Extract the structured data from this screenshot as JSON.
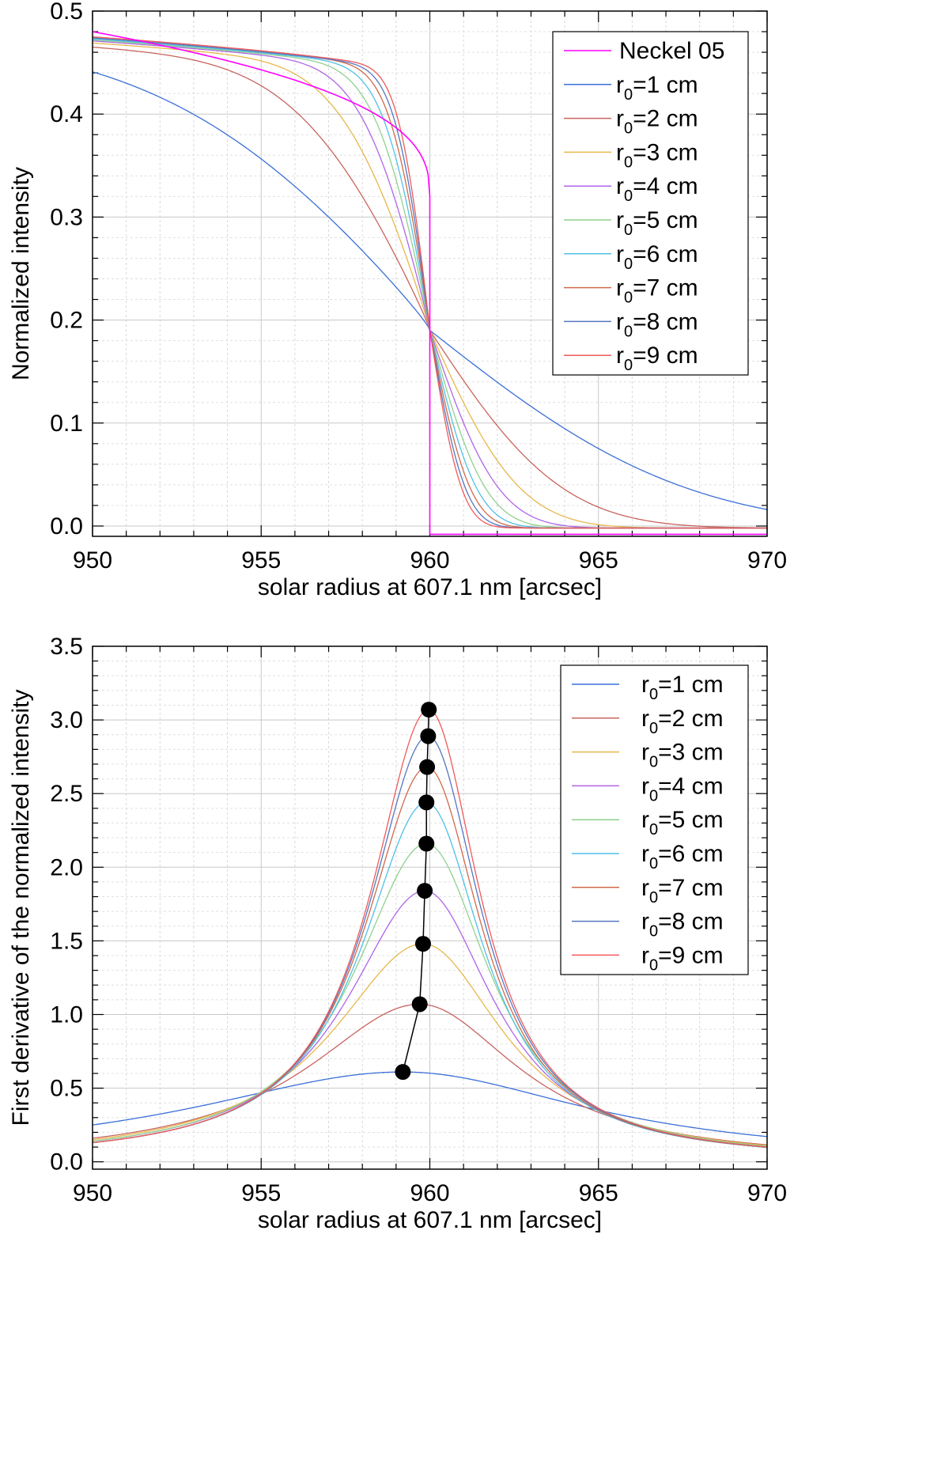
{
  "chart_data": [
    {
      "type": "line",
      "panel": "top",
      "xlabel": "solar radius at 607.1 nm [arcsec]",
      "ylabel": "Normalized intensity",
      "xlim": [
        950,
        970
      ],
      "ylim": [
        -0.01,
        0.5
      ],
      "xticks": [
        950,
        955,
        960,
        965,
        970
      ],
      "yticks": [
        0.0,
        0.1,
        0.2,
        0.3,
        0.4,
        0.5
      ],
      "tick_labels_x": [
        "950",
        "955",
        "960",
        "965",
        "970"
      ],
      "tick_labels_y": [
        "0.0",
        "0.1",
        "0.2",
        "0.3",
        "0.4",
        "0.5"
      ],
      "grid": true,
      "legend_position": "top-right",
      "reference": {
        "name": "Neckel 05",
        "color": "#ff00ff",
        "limb_x": 960.0,
        "bottom_value": -0.008,
        "limb_value": 0.32,
        "edge_value": 0.48
      },
      "model": {
        "center_x": 960.0,
        "center_value": 0.19,
        "low_value": -0.002
      },
      "series": [
        {
          "name": "r",
          "sub": "0",
          "suffix": "=1 cm",
          "r0": 1,
          "color": "#3b6fd8",
          "value_at_950": 0.441
        },
        {
          "name": "r",
          "sub": "0",
          "suffix": "=2 cm",
          "r0": 2,
          "color": "#c8645f",
          "value_at_950": 0.465
        },
        {
          "name": "r",
          "sub": "0",
          "suffix": "=3 cm",
          "r0": 3,
          "color": "#e6b84a",
          "value_at_950": 0.469
        },
        {
          "name": "r",
          "sub": "0",
          "suffix": "=4 cm",
          "r0": 4,
          "color": "#b065e8",
          "value_at_950": 0.471
        },
        {
          "name": "r",
          "sub": "0",
          "suffix": "=5 cm",
          "r0": 5,
          "color": "#8fd18f",
          "value_at_950": 0.472
        },
        {
          "name": "r",
          "sub": "0",
          "suffix": "=6 cm",
          "r0": 6,
          "color": "#4fc0e8",
          "value_at_950": 0.473
        },
        {
          "name": "r",
          "sub": "0",
          "suffix": "=7 cm",
          "r0": 7,
          "color": "#cf6a4a",
          "value_at_950": 0.474
        },
        {
          "name": "r",
          "sub": "0",
          "suffix": "=8 cm",
          "r0": 8,
          "color": "#5577c0",
          "value_at_950": 0.474
        },
        {
          "name": "r",
          "sub": "0",
          "suffix": "=9 cm",
          "r0": 9,
          "color": "#ef5a5a",
          "value_at_950": 0.475
        }
      ]
    },
    {
      "type": "line",
      "panel": "bottom",
      "xlabel": "solar radius at 607.1 nm [arcsec]",
      "ylabel": "First derivative of the normalized intensity",
      "xlim": [
        950,
        970
      ],
      "ylim": [
        -0.05,
        3.5
      ],
      "xticks": [
        950,
        955,
        960,
        965,
        970
      ],
      "yticks": [
        0.0,
        0.5,
        1.0,
        1.5,
        2.0,
        2.5,
        3.0,
        3.5
      ],
      "tick_labels_x": [
        "950",
        "955",
        "960",
        "965",
        "970"
      ],
      "tick_labels_y": [
        "0.0",
        "0.5",
        "1.0",
        "1.5",
        "2.0",
        "2.5",
        "3.0",
        "3.5"
      ],
      "grid": true,
      "legend_position": "top-right",
      "series": [
        {
          "name": "r",
          "sub": "0",
          "suffix": "=1 cm",
          "r0": 1,
          "color": "#3b6fd8",
          "peak_x": 959.2,
          "peak_y": 0.61,
          "value_at_950": 0.25
        },
        {
          "name": "r",
          "sub": "0",
          "suffix": "=2 cm",
          "r0": 2,
          "color": "#c8645f",
          "peak_x": 959.7,
          "peak_y": 1.07,
          "value_at_950": 0.16
        },
        {
          "name": "r",
          "sub": "0",
          "suffix": "=3 cm",
          "r0": 3,
          "color": "#e6b84a",
          "peak_x": 959.8,
          "peak_y": 1.48,
          "value_at_950": 0.15
        },
        {
          "name": "r",
          "sub": "0",
          "suffix": "=4 cm",
          "r0": 4,
          "color": "#b065e8",
          "peak_x": 959.85,
          "peak_y": 1.84,
          "value_at_950": 0.14
        },
        {
          "name": "r",
          "sub": "0",
          "suffix": "=5 cm",
          "r0": 5,
          "color": "#8fd18f",
          "peak_x": 959.9,
          "peak_y": 2.16,
          "value_at_950": 0.14
        },
        {
          "name": "r",
          "sub": "0",
          "suffix": "=6 cm",
          "r0": 6,
          "color": "#4fc0e8",
          "peak_x": 959.9,
          "peak_y": 2.44,
          "value_at_950": 0.13
        },
        {
          "name": "r",
          "sub": "0",
          "suffix": "=7 cm",
          "r0": 7,
          "color": "#cf6a4a",
          "peak_x": 959.92,
          "peak_y": 2.68,
          "value_at_950": 0.13
        },
        {
          "name": "r",
          "sub": "0",
          "suffix": "=8 cm",
          "r0": 8,
          "color": "#5577c0",
          "peak_x": 959.95,
          "peak_y": 2.89,
          "value_at_950": 0.13
        },
        {
          "name": "r",
          "sub": "0",
          "suffix": "=9 cm",
          "r0": 9,
          "color": "#ef5a5a",
          "peak_x": 959.97,
          "peak_y": 3.07,
          "value_at_950": 0.13
        }
      ],
      "peak_markers": {
        "color": "#000000",
        "x": [
          959.2,
          959.7,
          959.8,
          959.85,
          959.9,
          959.9,
          959.92,
          959.95,
          959.97
        ],
        "y": [
          0.61,
          1.07,
          1.48,
          1.84,
          2.16,
          2.44,
          2.68,
          2.89,
          3.07
        ]
      }
    }
  ]
}
